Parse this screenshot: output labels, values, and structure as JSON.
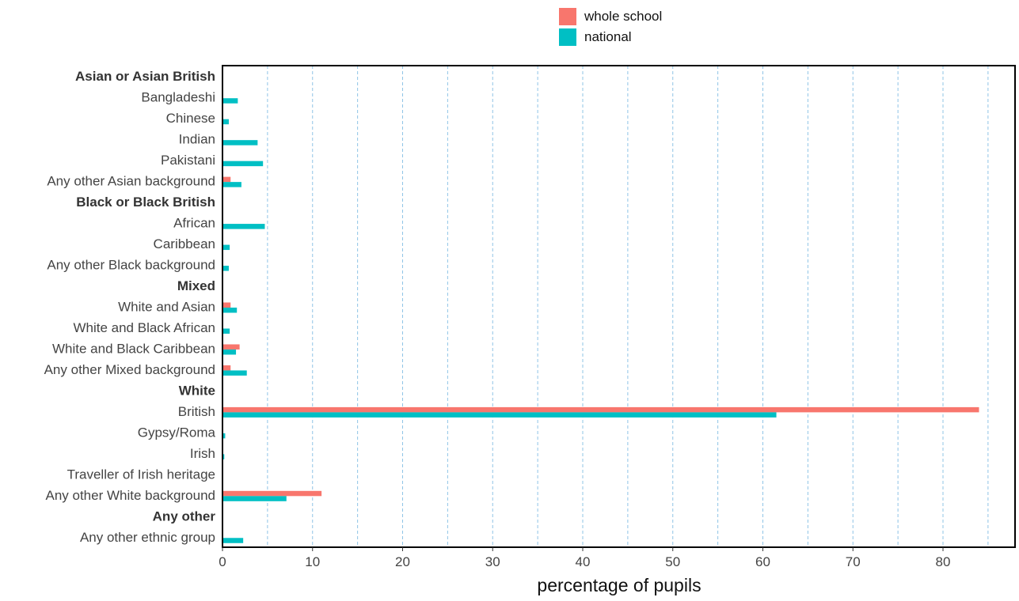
{
  "chart_data": {
    "type": "bar",
    "orientation": "horizontal",
    "xlabel": "percentage of pupils",
    "ylabel": "",
    "xlim": [
      0,
      88
    ],
    "x_ticks": [
      0,
      10,
      20,
      30,
      40,
      50,
      60,
      70,
      80
    ],
    "x_gridlines": [
      5,
      10,
      15,
      20,
      25,
      30,
      35,
      40,
      45,
      50,
      55,
      60,
      65,
      70,
      75,
      80,
      85
    ],
    "grid": "vertical dashed",
    "legend_position": "top",
    "series": [
      {
        "name": "whole school",
        "color": "#F8766D"
      },
      {
        "name": "national",
        "color": "#00BFC4"
      }
    ],
    "rows": [
      {
        "label": "Asian or Asian British",
        "header": true
      },
      {
        "label": "Bangladeshi",
        "values": [
          0,
          1.7
        ]
      },
      {
        "label": "Chinese",
        "values": [
          0,
          0.7
        ]
      },
      {
        "label": "Indian",
        "values": [
          0,
          3.9
        ]
      },
      {
        "label": "Pakistani",
        "values": [
          0,
          4.5
        ]
      },
      {
        "label": "Any other Asian background",
        "values": [
          0.9,
          2.1
        ]
      },
      {
        "label": "Black or Black British",
        "header": true
      },
      {
        "label": "African",
        "values": [
          0,
          4.7
        ]
      },
      {
        "label": "Caribbean",
        "values": [
          0,
          0.8
        ]
      },
      {
        "label": "Any other Black background",
        "values": [
          0,
          0.7
        ]
      },
      {
        "label": "Mixed",
        "header": true
      },
      {
        "label": "White and Asian",
        "values": [
          0.9,
          1.6
        ]
      },
      {
        "label": "White and Black African",
        "values": [
          0,
          0.8
        ]
      },
      {
        "label": "White and Black Caribbean",
        "values": [
          1.9,
          1.5
        ]
      },
      {
        "label": "Any other Mixed background",
        "values": [
          0.9,
          2.7
        ]
      },
      {
        "label": "White",
        "header": true
      },
      {
        "label": "British",
        "values": [
          84.0,
          61.5
        ]
      },
      {
        "label": "Gypsy/Roma",
        "values": [
          0,
          0.3
        ]
      },
      {
        "label": "Irish",
        "values": [
          0,
          0.2
        ]
      },
      {
        "label": "Traveller of Irish heritage",
        "values": [
          0,
          0
        ]
      },
      {
        "label": "Any other White background",
        "values": [
          11.0,
          7.1
        ]
      },
      {
        "label": "Any other",
        "header": true
      },
      {
        "label": "Any other ethnic group",
        "values": [
          0,
          2.3
        ]
      }
    ]
  }
}
